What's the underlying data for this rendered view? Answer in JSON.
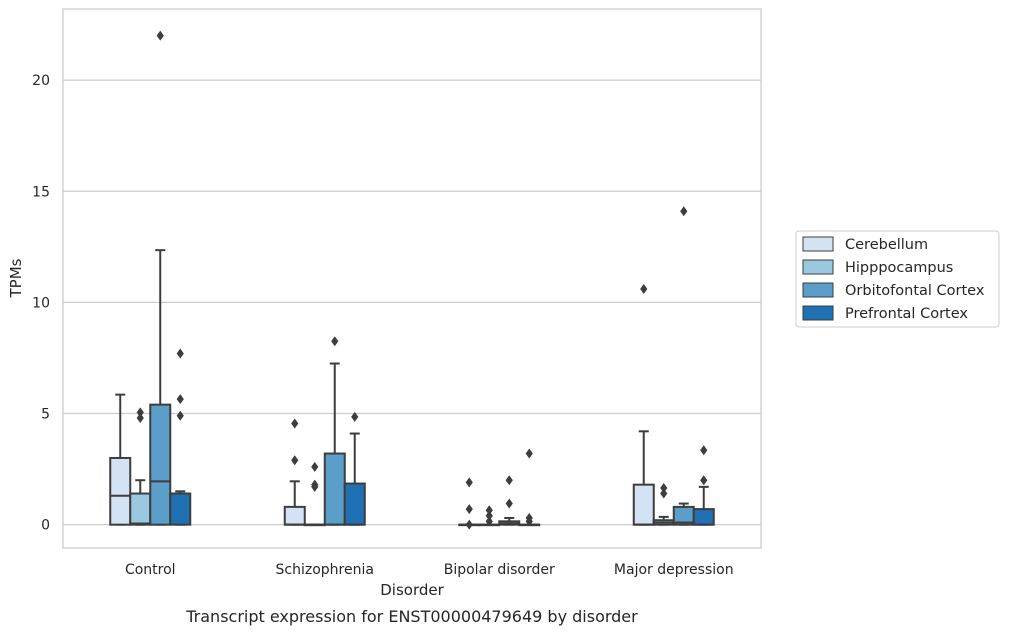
{
  "chart_data": {
    "type": "box",
    "caption": "Transcript expression for ENST00000479649 by disorder",
    "xlabel": "Disorder",
    "ylabel": "TPMs",
    "ylim": [
      -1.05,
      23.2
    ],
    "yticks": [
      0,
      5,
      10,
      15,
      20
    ],
    "grid": "horizontal",
    "legend_position": "right",
    "categories": [
      "Control",
      "Schizophrenia",
      "Bipolar disorder",
      "Major depression"
    ],
    "series": [
      {
        "name": "Cerebellum",
        "color": "#d3e3f3",
        "boxes": [
          {
            "whisker_low": 0,
            "q1": 0,
            "median": 1.3,
            "q3": 3.0,
            "whisker_high": 5.85,
            "outliers": []
          },
          {
            "whisker_low": 0,
            "q1": 0,
            "median": 0,
            "q3": 0.8,
            "whisker_high": 1.95,
            "outliers": [
              2.9,
              4.55
            ]
          },
          {
            "whisker_low": 0,
            "q1": 0,
            "median": 0,
            "q3": 0,
            "whisker_high": 0,
            "outliers": [
              0.0,
              0.7,
              1.9
            ]
          },
          {
            "whisker_low": 0,
            "q1": 0,
            "median": 0,
            "q3": 1.8,
            "whisker_high": 4.2,
            "outliers": [
              10.6
            ]
          }
        ]
      },
      {
        "name": "Hipppocampus",
        "color": "#9ac8e0",
        "boxes": [
          {
            "whisker_low": 0,
            "q1": 0,
            "median": 0.05,
            "q3": 1.4,
            "whisker_high": 2.0,
            "outliers": [
              4.8,
              5.05
            ]
          },
          {
            "whisker_low": 0,
            "q1": 0,
            "median": 0,
            "q3": 0,
            "whisker_high": 0,
            "outliers": [
              1.7,
              1.8,
              2.6
            ]
          },
          {
            "whisker_low": 0,
            "q1": 0,
            "median": 0,
            "q3": 0,
            "whisker_high": 0,
            "outliers": [
              0.15,
              0.4,
              0.65
            ]
          },
          {
            "whisker_low": 0,
            "q1": 0,
            "median": 0.1,
            "q3": 0.2,
            "whisker_high": 0.35,
            "outliers": [
              1.4,
              1.65
            ]
          }
        ]
      },
      {
        "name": "Orbitofontal Cortex",
        "color": "#5a9ec9",
        "boxes": [
          {
            "whisker_low": 0,
            "q1": 0,
            "median": 1.95,
            "q3": 5.4,
            "whisker_high": 12.35,
            "outliers": [
              22.0
            ]
          },
          {
            "whisker_low": 0,
            "q1": 0,
            "median": 0,
            "q3": 3.2,
            "whisker_high": 7.25,
            "outliers": [
              8.25
            ]
          },
          {
            "whisker_low": 0,
            "q1": 0,
            "median": 0.05,
            "q3": 0.15,
            "whisker_high": 0.3,
            "outliers": [
              0.95,
              2.0
            ]
          },
          {
            "whisker_low": 0,
            "q1": 0,
            "median": 0.1,
            "q3": 0.8,
            "whisker_high": 0.95,
            "outliers": [
              14.1
            ]
          }
        ]
      },
      {
        "name": "Prefrontal Cortex",
        "color": "#2070b4",
        "boxes": [
          {
            "whisker_low": 0,
            "q1": 0,
            "median": 1.4,
            "q3": 1.4,
            "whisker_high": 1.5,
            "outliers": [
              4.9,
              5.65,
              7.7
            ]
          },
          {
            "whisker_low": 0,
            "q1": 0,
            "median": 0,
            "q3": 1.85,
            "whisker_high": 4.1,
            "outliers": [
              4.85
            ]
          },
          {
            "whisker_low": 0,
            "q1": 0,
            "median": 0,
            "q3": 0,
            "whisker_high": 0,
            "outliers": [
              0.15,
              0.3,
              3.2
            ]
          },
          {
            "whisker_low": 0,
            "q1": 0,
            "median": 0,
            "q3": 0.7,
            "whisker_high": 1.7,
            "outliers": [
              2.0,
              3.35
            ]
          }
        ]
      }
    ]
  }
}
